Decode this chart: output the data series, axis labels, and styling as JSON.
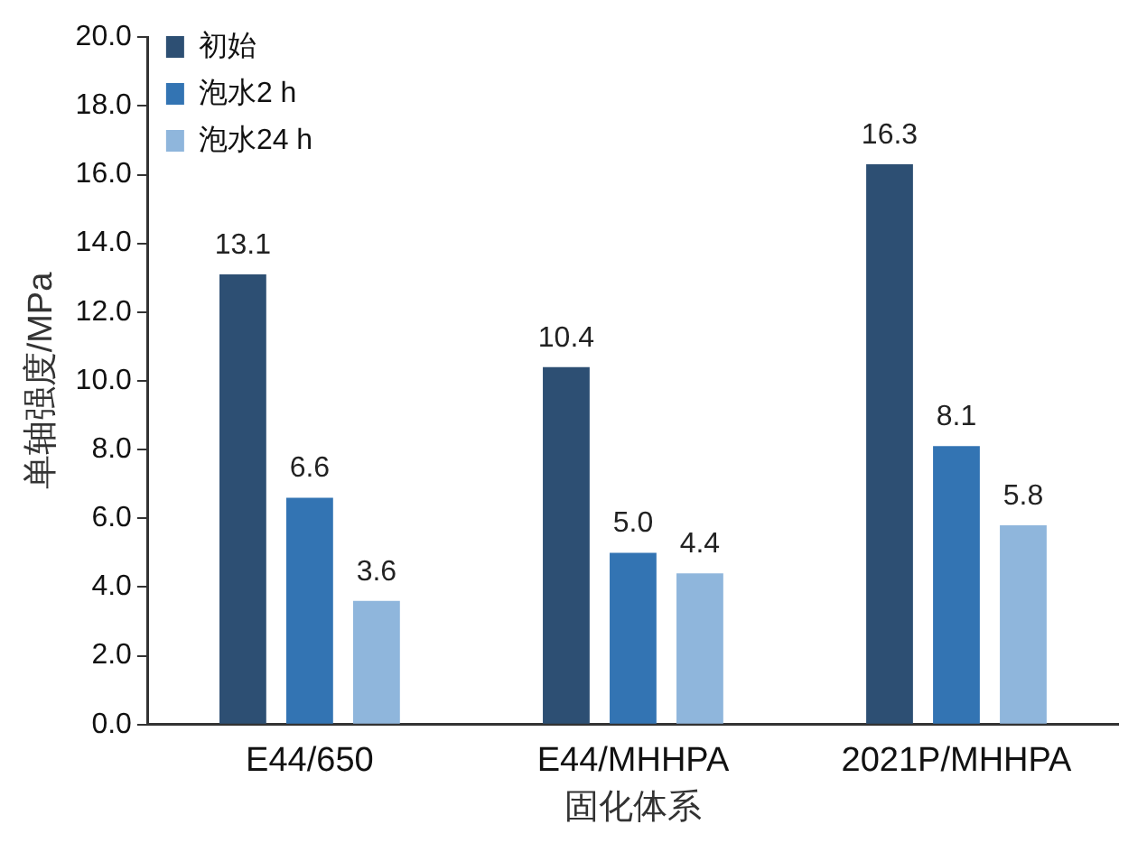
{
  "chart_data": {
    "type": "bar",
    "xlabel": "固化体系",
    "ylabel": "单轴强度/MPa",
    "categories": [
      "E44/650",
      "E44/MHHPA",
      "2021P/MHHPA"
    ],
    "series": [
      {
        "name": "初始",
        "color": "#2d4f73",
        "values": [
          13.1,
          10.4,
          16.3
        ],
        "value_labels": [
          "13.1",
          "10.4",
          "16.3"
        ]
      },
      {
        "name": "泡水2 h",
        "color": "#3374b3",
        "values": [
          6.6,
          5.0,
          8.1
        ],
        "value_labels": [
          "6.6",
          "5.0",
          "8.1"
        ]
      },
      {
        "name": "泡水24 h",
        "color": "#8fb6dc",
        "values": [
          3.6,
          4.4,
          5.8
        ],
        "value_labels": [
          "3.6",
          "4.4",
          "5.8"
        ]
      }
    ],
    "ylim": [
      0,
      20
    ],
    "yticks": [
      {
        "value": 0,
        "label": "0.0"
      },
      {
        "value": 2,
        "label": "2.0"
      },
      {
        "value": 4,
        "label": "4.0"
      },
      {
        "value": 6,
        "label": "6.0"
      },
      {
        "value": 8,
        "label": "8.0"
      },
      {
        "value": 10,
        "label": "10.0"
      },
      {
        "value": 12,
        "label": "12.0"
      },
      {
        "value": 14,
        "label": "14.0"
      },
      {
        "value": 16,
        "label": "16.0"
      },
      {
        "value": 18,
        "label": "18.0"
      },
      {
        "value": 20,
        "label": "20.0"
      }
    ],
    "grid": false,
    "legend": "top left"
  }
}
